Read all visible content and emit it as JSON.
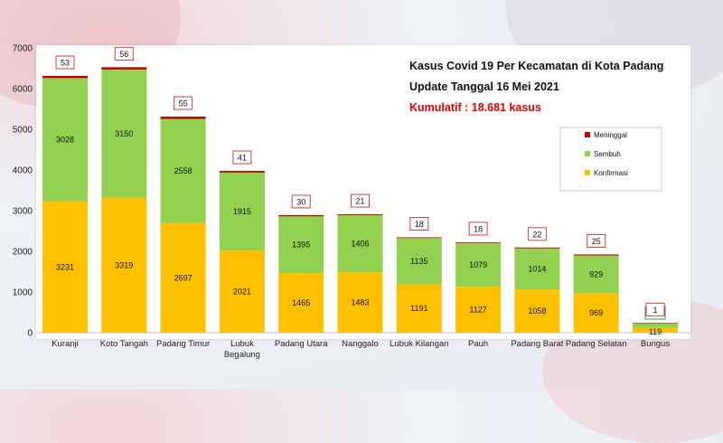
{
  "chart_data": {
    "type": "bar",
    "stacked": true,
    "title": "Kasus Covid  19 Per Kecamatan  di Kota Padang",
    "subtitle": "Update Tanggal  16 Mei 2021",
    "cumulative": "Kumulatif  : 18.681 kasus",
    "categories": [
      "Kuranji",
      "Koto Tangah",
      "Padang Timur",
      "Lubuk Begalung",
      "Padang Utara",
      "Nanggalo",
      "Lubuk Kilangan",
      "Pauh",
      "Padang Barat",
      "Padang Selatan",
      "Bungus"
    ],
    "series": [
      {
        "name": "Konfirmasi",
        "color": "#ffc000",
        "values": [
          3231,
          3319,
          2697,
          2021,
          1465,
          1483,
          1191,
          1127,
          1058,
          969,
          119
        ]
      },
      {
        "name": "Sembuh",
        "color": "#92d050",
        "values": [
          3028,
          3150,
          2558,
          1915,
          1395,
          1406,
          1135,
          1079,
          1014,
          929,
          117
        ]
      },
      {
        "name": "Meninggal",
        "color": "#c00000",
        "values": [
          53,
          56,
          55,
          41,
          30,
          21,
          18,
          18,
          22,
          25,
          1
        ]
      }
    ],
    "legend_order": [
      "Meninggal",
      "Sembuh",
      "Konfirmasi"
    ],
    "ylim": [
      0,
      7000
    ],
    "yticks": [
      0,
      1000,
      2000,
      3000,
      4000,
      5000,
      6000,
      7000
    ],
    "legend_position": "right"
  }
}
